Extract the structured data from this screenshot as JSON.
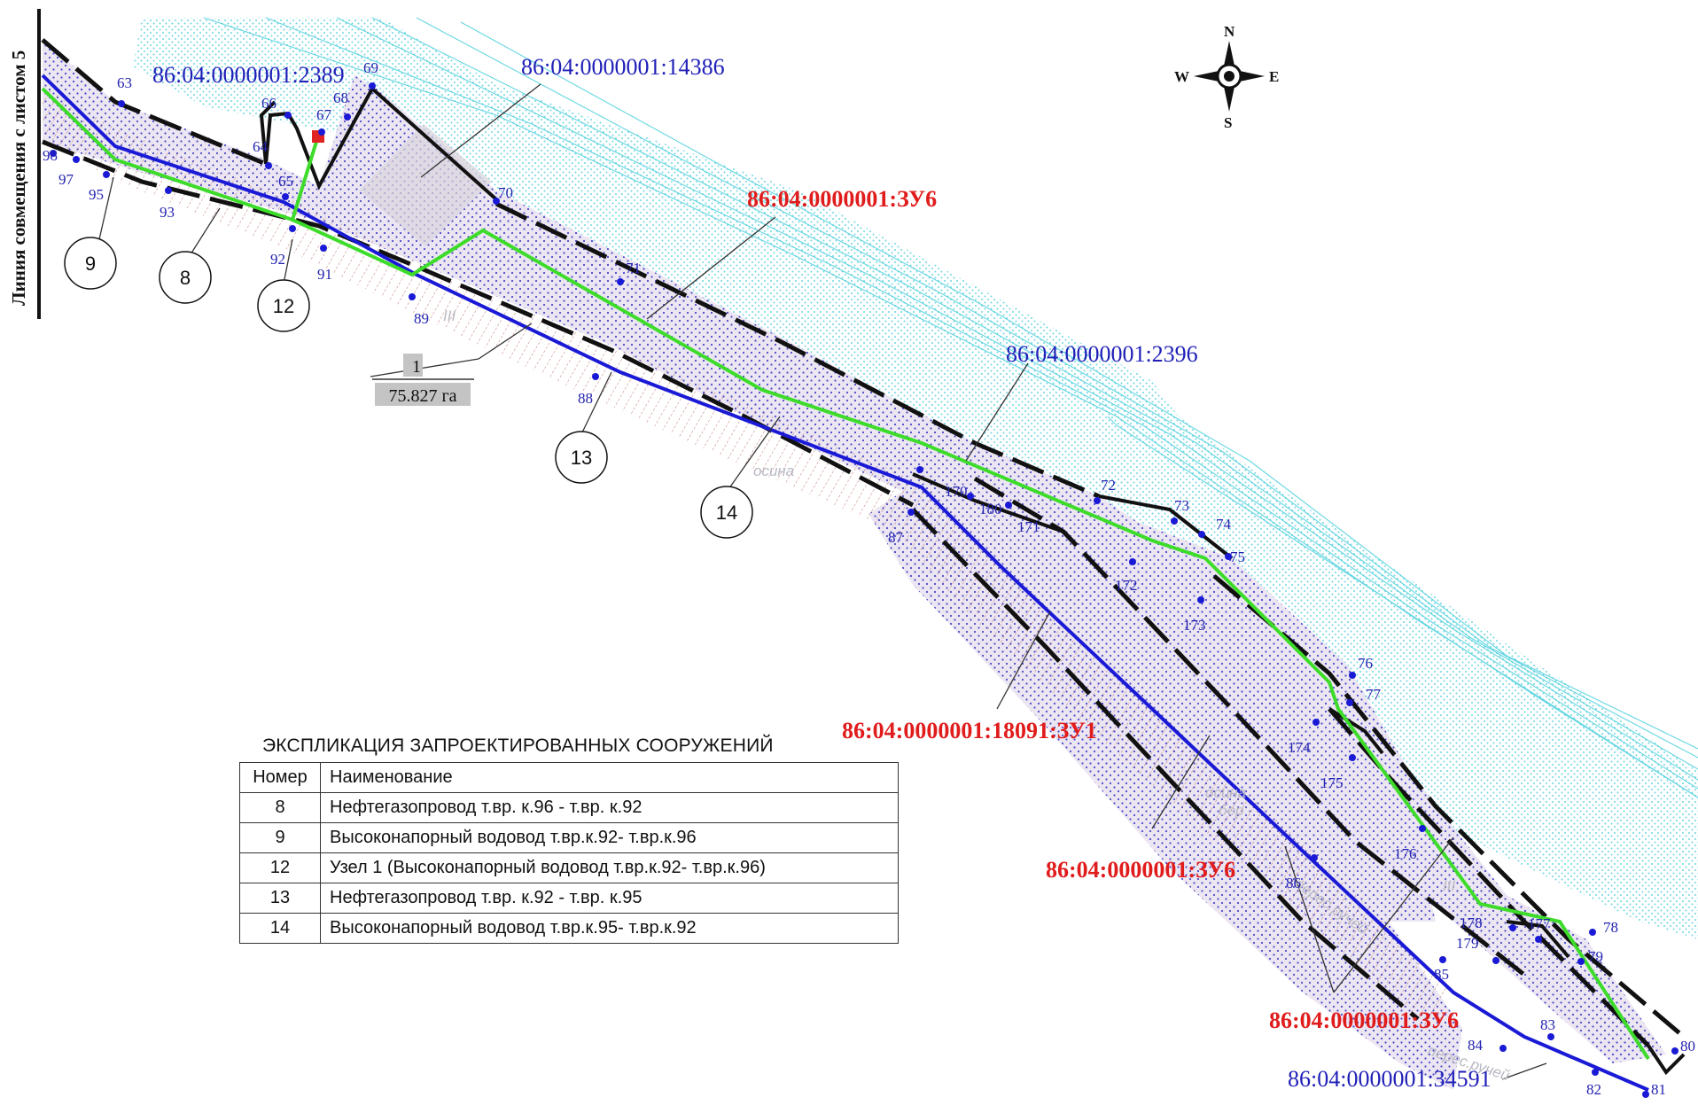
{
  "side_label": "Линия совмещения с листом 5",
  "compass": {
    "n": "N",
    "s": "S",
    "e": "E",
    "w": "W"
  },
  "plots": {
    "p2389": "86:04:0000001:2389",
    "p14386": "86:04:0000001:14386",
    "zu6_a": "86:04:0000001:ЗУ6",
    "p2396": "86:04:0000001:2396",
    "zu1": "86:04:0000001:18091:ЗУ1",
    "zu6_b": "86:04:0000001:ЗУ6",
    "zu6_c": "86:04:0000001:ЗУ6",
    "p34591": "86:04:0000001:34591"
  },
  "area_label": {
    "number": "1",
    "area": "75.827 га"
  },
  "structure_markers": [
    "9",
    "8",
    "12",
    "13",
    "14"
  ],
  "points": [
    "98",
    "97",
    "95",
    "93",
    "63",
    "64",
    "65",
    "66",
    "67",
    "68",
    "69",
    "70",
    "71",
    "92",
    "91",
    "89",
    "88",
    "87",
    "170",
    "180",
    "171",
    "72",
    "73",
    "74",
    "75",
    "172",
    "173",
    "76",
    "77",
    "174",
    "175",
    "176",
    "86",
    "85",
    "177",
    "178",
    "179",
    "78",
    "79",
    "80",
    "81",
    "82",
    "83",
    "84"
  ],
  "faint_labels": [
    "осина",
    "осина",
    "бер",
    "перес.ручей",
    "перес.ручей",
    "III",
    "III"
  ],
  "legend": {
    "title": "ЭКСПЛИКАЦИЯ ЗАПРОЕКТИРОВАННЫХ СООРУЖЕНИЙ",
    "col_number": "Номер",
    "col_name": "Наименование",
    "rows": [
      {
        "num": "8",
        "name": "Нефтегазопровод т.вр. к.96 - т.вр. к.92"
      },
      {
        "num": "9",
        "name": "Высоконапорный водовод т.вр.к.92- т.вр.к.96"
      },
      {
        "num": "12",
        "name": "Узел 1 (Высоконапорный водовод т.вр.к.92- т.вр.к.96)"
      },
      {
        "num": "13",
        "name": "Нефтегазопровод т.вр. к.92 - т.вр. к.95"
      },
      {
        "num": "14",
        "name": "Высоконапорный водовод т.вр.к.95- т.вр.к.92"
      }
    ]
  },
  "colors": {
    "corridor_fill": "#ece6f2",
    "boundary": "#111111",
    "pipeline_blue": "#1a1ad6",
    "water_green": "#3ddc2a",
    "hydro_cyan": "#57d3df",
    "plot_label": "#1f1fb8",
    "zu_label": "#e01c1c",
    "hatch_brown": "#9a3b2c"
  }
}
